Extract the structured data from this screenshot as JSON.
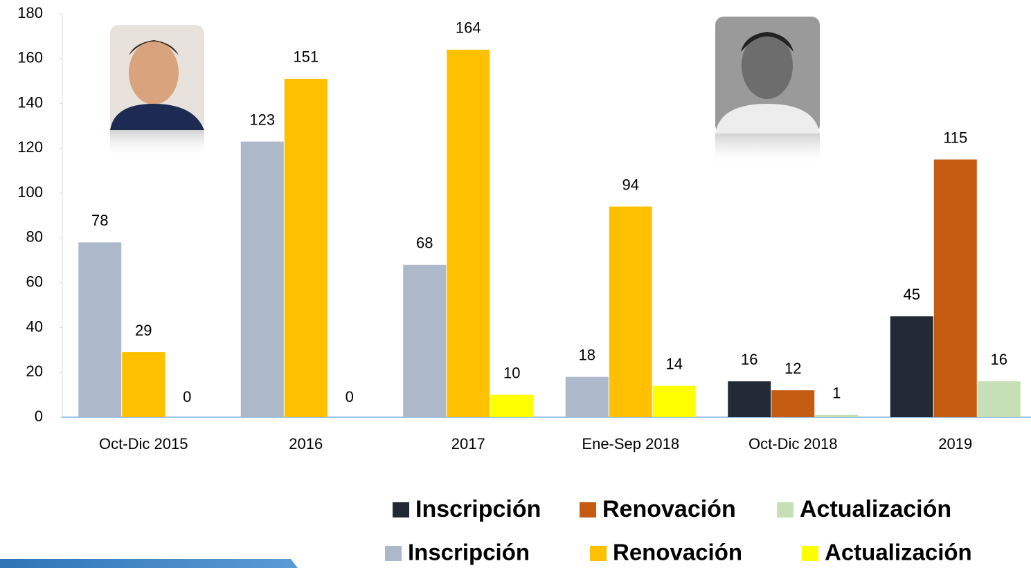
{
  "chart_data": {
    "type": "bar",
    "categories": [
      "Oct-Dic 2015",
      "2016",
      "2017",
      "Ene-Sep 2018",
      "Oct-Dic 2018",
      "2019"
    ],
    "series": [
      {
        "name": "Inscripción",
        "color": "#222a35",
        "values": [
          null,
          null,
          null,
          null,
          16,
          45
        ]
      },
      {
        "name": "Renovación",
        "color": "#c55a11",
        "values": [
          null,
          null,
          null,
          null,
          12,
          115
        ]
      },
      {
        "name": "Actualización",
        "color": "#c5e0b4",
        "values": [
          null,
          null,
          null,
          null,
          1,
          16
        ]
      },
      {
        "name": "Inscripción",
        "color": "#adb9ca",
        "values": [
          78,
          123,
          68,
          18,
          null,
          null
        ]
      },
      {
        "name": "Renovación",
        "color": "#ffc000",
        "values": [
          29,
          151,
          164,
          94,
          null,
          null
        ]
      },
      {
        "name": "Actualización",
        "color": "#ffff00",
        "values": [
          0,
          0,
          10,
          14,
          null,
          null
        ]
      }
    ],
    "ylim": [
      0,
      180
    ],
    "yticks": [
      0,
      20,
      40,
      60,
      80,
      100,
      120,
      140,
      160,
      180
    ]
  }
}
